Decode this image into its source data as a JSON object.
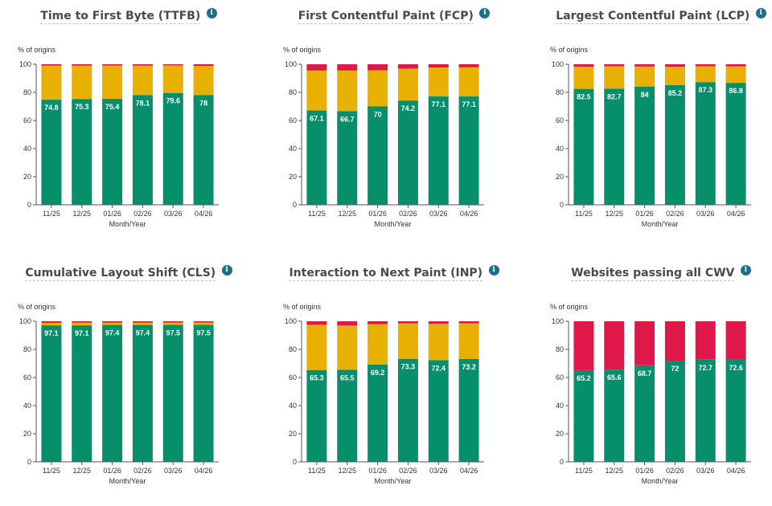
{
  "common": {
    "ylabel": "% of origins",
    "xlabel": "Month/Year",
    "categories": [
      "11/25",
      "12/25",
      "01/26",
      "02/26",
      "03/26",
      "04/26"
    ],
    "yticks": [
      "0",
      "20",
      "40",
      "60",
      "80",
      "100"
    ],
    "info_icon": "i"
  },
  "colors": {
    "good": "#078f6b",
    "needs_improvement": "#e8b000",
    "poor": "#e0184a",
    "axis": "#555555"
  },
  "chart_data": [
    {
      "type": "bar",
      "stacked": true,
      "title": "Time to First Byte (TTFB)",
      "xlabel": "Month/Year",
      "ylabel": "% of origins",
      "ylim": [
        0,
        100
      ],
      "categories": [
        "11/25",
        "12/25",
        "01/26",
        "02/26",
        "03/26",
        "04/26"
      ],
      "series": [
        {
          "values": [
            74.8,
            75.3,
            75.4,
            78.1,
            79.6,
            78
          ],
          "color": "good"
        },
        {
          "values": [
            24.2,
            23.7,
            23.7,
            20.9,
            19.6,
            20.8
          ],
          "color": "needs_improvement"
        },
        {
          "values": [
            1.0,
            1.0,
            0.9,
            1.0,
            0.8,
            1.2
          ],
          "color": "poor"
        }
      ],
      "labels": [
        "74.8",
        "75.3",
        "75.4",
        "78.1",
        "79.6",
        "78"
      ]
    },
    {
      "type": "bar",
      "stacked": true,
      "title": "First Contentful Paint (FCP)",
      "xlabel": "Month/Year",
      "ylabel": "% of origins",
      "ylim": [
        0,
        100
      ],
      "categories": [
        "11/25",
        "12/25",
        "01/26",
        "02/26",
        "03/26",
        "04/26"
      ],
      "series": [
        {
          "values": [
            67.1,
            66.7,
            70,
            74.2,
            77.1,
            77.1
          ],
          "color": "good"
        },
        {
          "values": [
            28.4,
            28.8,
            25.7,
            22.7,
            20.6,
            20.7
          ],
          "color": "needs_improvement"
        },
        {
          "values": [
            4.5,
            4.5,
            4.3,
            3.1,
            2.3,
            2.2
          ],
          "color": "poor"
        }
      ],
      "labels": [
        "67.1",
        "66.7",
        "70",
        "74.2",
        "77.1",
        "77.1"
      ]
    },
    {
      "type": "bar",
      "stacked": true,
      "title": "Largest Contentful Paint (LCP)",
      "xlabel": "Month/Year",
      "ylabel": "% of origins",
      "ylim": [
        0,
        100
      ],
      "categories": [
        "11/25",
        "12/25",
        "01/26",
        "02/26",
        "03/26",
        "04/26"
      ],
      "series": [
        {
          "values": [
            82.5,
            82.7,
            84,
            85.2,
            87.3,
            86.8
          ],
          "color": "good"
        },
        {
          "values": [
            15.8,
            15.9,
            14.4,
            13.0,
            11.3,
            11.7
          ],
          "color": "needs_improvement"
        },
        {
          "values": [
            1.7,
            1.4,
            1.6,
            1.8,
            1.4,
            1.5
          ],
          "color": "poor"
        }
      ],
      "labels": [
        "82.5",
        "82.7",
        "84",
        "85.2",
        "87.3",
        "86.8"
      ]
    },
    {
      "type": "bar",
      "stacked": true,
      "title": "Cumulative Layout Shift (CLS)",
      "xlabel": "Month/Year",
      "ylabel": "% of origins",
      "ylim": [
        0,
        100
      ],
      "categories": [
        "11/25",
        "12/25",
        "01/26",
        "02/26",
        "03/26",
        "04/26"
      ],
      "series": [
        {
          "values": [
            97.1,
            97.1,
            97.4,
            97.4,
            97.5,
            97.5
          ],
          "color": "good"
        },
        {
          "values": [
            1.8,
            1.9,
            1.6,
            1.6,
            1.6,
            1.6
          ],
          "color": "needs_improvement"
        },
        {
          "values": [
            1.1,
            1.0,
            1.0,
            1.0,
            0.9,
            0.9
          ],
          "color": "poor"
        }
      ],
      "labels": [
        "97.1",
        "97.1",
        "97.4",
        "97.4",
        "97.5",
        "97.5"
      ]
    },
    {
      "type": "bar",
      "stacked": true,
      "title": "Interaction to Next Paint (INP)",
      "xlabel": "Month/Year",
      "ylabel": "% of origins",
      "ylim": [
        0,
        100
      ],
      "categories": [
        "11/25",
        "12/25",
        "01/26",
        "02/26",
        "03/26",
        "04/26"
      ],
      "series": [
        {
          "values": [
            65.3,
            65.5,
            69.2,
            73.3,
            72.4,
            73.2
          ],
          "color": "good"
        },
        {
          "values": [
            32.2,
            31.5,
            28.8,
            25.2,
            25.8,
            25.3
          ],
          "color": "needs_improvement"
        },
        {
          "values": [
            2.5,
            3.0,
            2.0,
            1.5,
            1.8,
            1.5
          ],
          "color": "poor"
        }
      ],
      "labels": [
        "65.3",
        "65.5",
        "69.2",
        "73.3",
        "72.4",
        "73.2"
      ]
    },
    {
      "type": "bar",
      "stacked": true,
      "title": "Websites passing all CWV",
      "xlabel": "Month/Year",
      "ylabel": "% of origins",
      "ylim": [
        0,
        100
      ],
      "categories": [
        "11/25",
        "12/25",
        "01/26",
        "02/26",
        "03/26",
        "04/26"
      ],
      "series": [
        {
          "values": [
            65.2,
            65.6,
            68.7,
            72,
            72.7,
            72.6
          ],
          "color": "good"
        },
        {
          "values": [
            34.8,
            34.4,
            31.3,
            28,
            27.3,
            27.4
          ],
          "color": "poor"
        }
      ],
      "labels": [
        "65.2",
        "65.6",
        "68.7",
        "72",
        "72.7",
        "72.6"
      ]
    }
  ]
}
